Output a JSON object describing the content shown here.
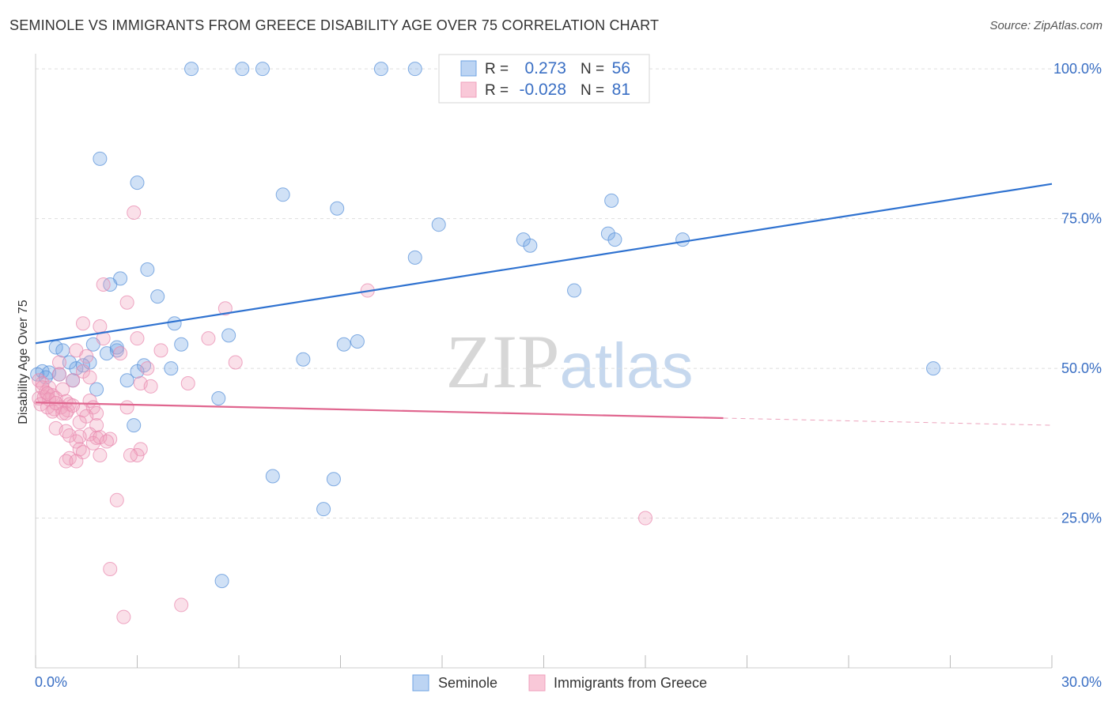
{
  "chart_data": {
    "type": "scatter",
    "title": "SEMINOLE VS IMMIGRANTS FROM GREECE DISABILITY AGE OVER 75 CORRELATION CHART",
    "source": "Source: ZipAtlas.com",
    "ylabel": "Disability Age Over 75",
    "xlabel": "",
    "xlim": [
      0,
      30
    ],
    "ylim": [
      0,
      102
    ],
    "x_tick_labels": [
      "0.0%",
      "30.0%"
    ],
    "y_ticks": [
      25,
      50,
      75,
      100
    ],
    "y_tick_labels": [
      "25.0%",
      "50.0%",
      "75.0%",
      "100.0%"
    ],
    "grid": true,
    "legend_position": "top-center",
    "watermark": "ZIPatlas",
    "colors": {
      "seminole": "#6fa3e3",
      "seminole_line": "#2f72d0",
      "greece": "#f0a0bd",
      "greece_line": "#e0668f",
      "axis_label_blue": "#3a6fc4"
    },
    "legend": {
      "rows": [
        {
          "r_label": "R =",
          "r_value": "0.273",
          "n_label": "N =",
          "n_value": "56"
        },
        {
          "r_label": "R =",
          "r_value": "-0.028",
          "n_label": "N =",
          "n_value": "81"
        }
      ]
    },
    "series": [
      {
        "name": "Seminole",
        "color": "#6fa3e3",
        "trend": {
          "x": [
            0,
            30
          ],
          "y": [
            54.2,
            80.8
          ]
        },
        "points": [
          [
            4.6,
            100
          ],
          [
            6.1,
            100
          ],
          [
            6.7,
            100
          ],
          [
            10.2,
            100
          ],
          [
            11.2,
            100
          ],
          [
            1.9,
            85
          ],
          [
            3.0,
            81
          ],
          [
            7.3,
            79
          ],
          [
            8.9,
            76.7
          ],
          [
            17.0,
            78
          ],
          [
            11.9,
            74
          ],
          [
            14.4,
            71.5
          ],
          [
            14.6,
            70.5
          ],
          [
            16.9,
            72.5
          ],
          [
            17.1,
            71.5
          ],
          [
            19.1,
            71.5
          ],
          [
            11.2,
            68.5
          ],
          [
            3.3,
            66.5
          ],
          [
            2.5,
            65
          ],
          [
            2.2,
            64
          ],
          [
            3.6,
            62
          ],
          [
            15.9,
            63
          ],
          [
            4.1,
            57.5
          ],
          [
            5.7,
            55.5
          ],
          [
            9.1,
            54
          ],
          [
            9.5,
            54.5
          ],
          [
            4.3,
            54
          ],
          [
            2.4,
            53
          ],
          [
            1.7,
            54
          ],
          [
            0.6,
            53.5
          ],
          [
            0.8,
            53
          ],
          [
            2.1,
            52.5
          ],
          [
            1.0,
            51
          ],
          [
            1.6,
            51
          ],
          [
            3.2,
            50.5
          ],
          [
            3.0,
            49.5
          ],
          [
            7.9,
            51.5
          ],
          [
            0.2,
            49.5
          ],
          [
            0.4,
            49.3
          ],
          [
            0.7,
            49
          ],
          [
            1.2,
            50
          ],
          [
            4.0,
            50
          ],
          [
            0.05,
            49
          ],
          [
            0.3,
            48.5
          ],
          [
            1.1,
            48
          ],
          [
            2.7,
            48
          ],
          [
            1.8,
            46.5
          ],
          [
            26.5,
            50
          ],
          [
            5.4,
            45
          ],
          [
            2.9,
            40.5
          ],
          [
            7.0,
            32
          ],
          [
            8.8,
            31.5
          ],
          [
            8.5,
            26.5
          ],
          [
            5.5,
            14.5
          ],
          [
            1.4,
            50.5
          ],
          [
            2.4,
            53.5
          ]
        ]
      },
      {
        "name": "Immigrants from Greece",
        "color": "#f0a0bd",
        "trend": {
          "x": [
            0,
            20.3
          ],
          "y": [
            44.3,
            41.7
          ]
        },
        "trend_dashed": {
          "x": [
            20.3,
            30
          ],
          "y": [
            41.7,
            40.5
          ]
        },
        "points": [
          [
            2.9,
            76
          ],
          [
            2.0,
            64
          ],
          [
            9.8,
            63
          ],
          [
            2.7,
            61
          ],
          [
            5.6,
            60
          ],
          [
            1.4,
            57.5
          ],
          [
            1.9,
            57
          ],
          [
            5.1,
            55
          ],
          [
            3.0,
            55
          ],
          [
            2.0,
            55
          ],
          [
            1.2,
            53
          ],
          [
            3.7,
            53
          ],
          [
            2.5,
            52.5
          ],
          [
            1.5,
            52
          ],
          [
            5.9,
            51
          ],
          [
            0.7,
            51
          ],
          [
            3.3,
            50
          ],
          [
            1.4,
            49.5
          ],
          [
            1.1,
            48
          ],
          [
            0.7,
            49
          ],
          [
            1.6,
            48.5
          ],
          [
            3.1,
            47.5
          ],
          [
            4.5,
            47.5
          ],
          [
            3.4,
            47
          ],
          [
            0.1,
            48
          ],
          [
            0.2,
            47.5
          ],
          [
            0.4,
            46.8
          ],
          [
            0.8,
            46.5
          ],
          [
            0.3,
            46
          ],
          [
            0.5,
            45.5
          ],
          [
            0.1,
            45
          ],
          [
            0.25,
            45.2
          ],
          [
            0.4,
            44.8
          ],
          [
            0.6,
            45
          ],
          [
            0.9,
            44.5
          ],
          [
            1.0,
            44
          ],
          [
            1.6,
            44.6
          ],
          [
            0.15,
            44
          ],
          [
            0.35,
            43.5
          ],
          [
            0.55,
            43.2
          ],
          [
            0.75,
            43.5
          ],
          [
            0.95,
            43
          ],
          [
            0.5,
            42.8
          ],
          [
            0.8,
            42.5
          ],
          [
            1.7,
            43.5
          ],
          [
            2.7,
            43.5
          ],
          [
            1.4,
            43
          ],
          [
            1.8,
            42.5
          ],
          [
            1.5,
            42
          ],
          [
            0.9,
            42.5
          ],
          [
            1.3,
            41
          ],
          [
            1.8,
            40.5
          ],
          [
            0.6,
            40
          ],
          [
            0.9,
            39.5
          ],
          [
            1.6,
            39
          ],
          [
            1.0,
            38.8
          ],
          [
            1.3,
            38.6
          ],
          [
            1.8,
            38.4
          ],
          [
            2.2,
            38.2
          ],
          [
            1.2,
            37.8
          ],
          [
            1.7,
            37.5
          ],
          [
            1.9,
            38.5
          ],
          [
            2.1,
            37.8
          ],
          [
            1.3,
            36.5
          ],
          [
            1.4,
            36
          ],
          [
            3.1,
            36.5
          ],
          [
            3.0,
            35.5
          ],
          [
            2.8,
            35.5
          ],
          [
            1.9,
            35.5
          ],
          [
            1.0,
            35
          ],
          [
            0.9,
            34.5
          ],
          [
            1.2,
            34.5
          ],
          [
            2.4,
            28
          ],
          [
            18.0,
            25
          ],
          [
            2.2,
            16.5
          ],
          [
            4.3,
            10.5
          ],
          [
            2.6,
            8.5
          ],
          [
            0.2,
            46.8
          ],
          [
            0.35,
            45.8
          ],
          [
            0.6,
            44.2
          ],
          [
            1.1,
            43.8
          ]
        ]
      }
    ]
  }
}
